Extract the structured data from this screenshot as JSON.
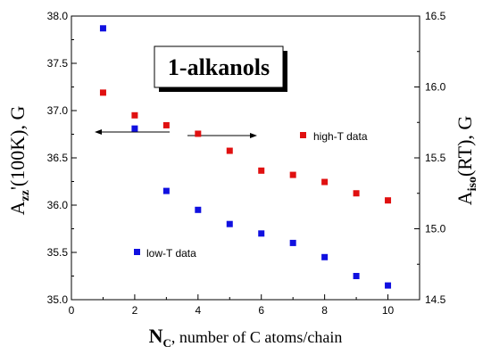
{
  "chart_data": {
    "type": "scatter",
    "title": "1-alkanols",
    "xlabel": {
      "main": "N",
      "sub": "C",
      "rest": ", number of C atoms/chain"
    },
    "ylabel_left": {
      "main": "A",
      "sub": "zz",
      "rest": "'(100K), G"
    },
    "ylabel_right": {
      "main": "A",
      "sub": "iso",
      "rest": "(RT), G"
    },
    "xlim": [
      0,
      11
    ],
    "ylim_left": [
      35.0,
      38.0
    ],
    "ylim_right": [
      14.5,
      16.5
    ],
    "x_ticks": [
      0,
      2,
      4,
      6,
      8,
      10
    ],
    "y_left_ticks": [
      35.0,
      35.5,
      36.0,
      36.5,
      37.0,
      37.5,
      38.0
    ],
    "y_right_ticks": [
      14.5,
      15.0,
      15.5,
      16.0,
      16.5
    ],
    "grid": false,
    "series": [
      {
        "name": "low-T data",
        "axis": "left",
        "color": "#1010e0",
        "x": [
          1,
          2,
          3,
          4,
          5,
          6,
          7,
          8,
          9,
          10
        ],
        "y": [
          37.87,
          36.81,
          36.15,
          35.95,
          35.8,
          35.7,
          35.6,
          35.45,
          35.25,
          35.15
        ]
      },
      {
        "name": "high-T data",
        "axis": "right",
        "color": "#e01010",
        "x": [
          1,
          2,
          3,
          4,
          5,
          6,
          7,
          8,
          9,
          10
        ],
        "y": [
          15.96,
          15.8,
          15.73,
          15.67,
          15.55,
          15.41,
          15.38,
          15.33,
          15.25,
          15.2
        ]
      }
    ]
  }
}
